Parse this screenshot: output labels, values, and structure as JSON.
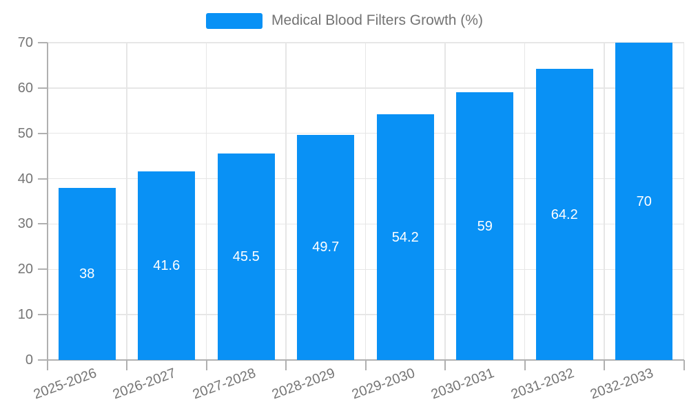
{
  "chart_data": {
    "type": "bar",
    "title": "Medical Blood Filters Growth (%)",
    "legend": [
      "Medical Blood Filters Growth (%)"
    ],
    "legend_position": "top-center",
    "categories": [
      "2025-2026",
      "2026-2027",
      "2027-2028",
      "2028-2029",
      "2029-2030",
      "2030-2031",
      "2031-2032",
      "2032-2033"
    ],
    "series": [
      {
        "name": "Medical Blood Filters Growth (%)",
        "values": [
          38,
          41.6,
          45.5,
          49.7,
          54.2,
          59,
          64.2,
          70
        ]
      }
    ],
    "value_labels": [
      "38",
      "41.6",
      "45.5",
      "49.7",
      "54.2",
      "59",
      "64.2",
      "70"
    ],
    "xlabel": "",
    "ylabel": "",
    "ylim": [
      0,
      70
    ],
    "yticks": [
      0,
      10,
      20,
      30,
      40,
      50,
      60,
      70
    ],
    "grid": true,
    "x_label_rotation_deg": -20,
    "colors": {
      "bar": "#0991f5",
      "grid": "#e6e6e6",
      "axis": "#b0b0b0",
      "tick_label": "#757575",
      "value_label": "#ffffff",
      "background": "#ffffff"
    }
  }
}
